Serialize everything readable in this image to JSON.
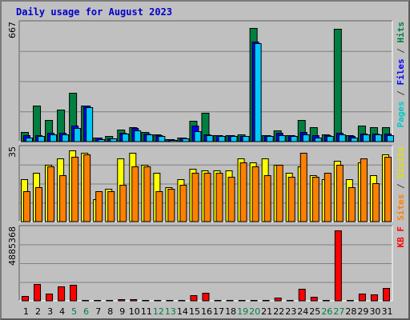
{
  "chart_data": {
    "type": "bar",
    "title": "Daily usage for August 2023",
    "categories": [
      "1",
      "2",
      "3",
      "4",
      "5",
      "6",
      "7",
      "8",
      "9",
      "10",
      "11",
      "12",
      "13",
      "14",
      "15",
      "16",
      "17",
      "18",
      "19",
      "20",
      "21",
      "22",
      "23",
      "24",
      "25",
      "26",
      "27",
      "28",
      "29",
      "30",
      "31"
    ],
    "weekend_categories": [
      "5",
      "6",
      "12",
      "13",
      "19",
      "20",
      "26",
      "27"
    ],
    "panels": [
      {
        "name": "hits-files-pages",
        "ymax": 667,
        "ymax_label": "667",
        "axis_legend": [
          {
            "text": "Pages",
            "color": "#00c8c8"
          },
          {
            "text": " / ",
            "color": "#404040"
          },
          {
            "text": "Files",
            "color": "#0000ff"
          },
          {
            "text": " / ",
            "color": "#404040"
          },
          {
            "text": "Hits",
            "color": "#008040"
          }
        ],
        "series": [
          {
            "name": "Hits",
            "color": "#008040",
            "values": [
              55,
              205,
              125,
              185,
              280,
              205,
              25,
              30,
              70,
              85,
              55,
              40,
              15,
              25,
              120,
              165,
              35,
              35,
              40,
              655,
              35,
              65,
              35,
              125,
              85,
              40,
              650,
              35,
              90,
              85,
              85
            ]
          },
          {
            "name": "Files",
            "color": "#0000ff",
            "values": [
              35,
              35,
              50,
              50,
              90,
              205,
              25,
              20,
              50,
              80,
              45,
              35,
              15,
              25,
              90,
              40,
              35,
              35,
              30,
              575,
              35,
              50,
              35,
              55,
              35,
              35,
              50,
              30,
              45,
              45,
              45
            ]
          },
          {
            "name": "Pages",
            "color": "#00c8ff",
            "values": [
              25,
              30,
              40,
              40,
              80,
              200,
              15,
              20,
              45,
              65,
              40,
              30,
              10,
              20,
              60,
              35,
              30,
              30,
              30,
              565,
              30,
              35,
              30,
              40,
              25,
              30,
              40,
              25,
              40,
              40,
              35
            ]
          }
        ]
      },
      {
        "name": "visits-sites",
        "ymax": 35,
        "ymax_label": "35",
        "axis_legend": [
          {
            "text": "Sites",
            "color": "#ff8000"
          },
          {
            "text": " / ",
            "color": "#404040"
          },
          {
            "text": "Visits",
            "color": "#e0e000"
          }
        ],
        "series": [
          {
            "name": "Visits",
            "color": "#ffff00",
            "values": [
              21,
              24,
              28,
              31,
              35,
              34,
              11,
              16,
              31,
              34,
              28,
              24,
              17,
              21,
              26,
              25,
              25,
              25,
              31,
              29,
              31,
              28,
              24,
              27,
              23,
              21,
              30,
              21,
              29,
              23,
              33
            ]
          },
          {
            "name": "Sites",
            "color": "#ff8000",
            "values": [
              15,
              17,
              27,
              23,
              32,
              33,
              15,
              15,
              18,
              27,
              27,
              15,
              16,
              18,
              24,
              24,
              24,
              22,
              29,
              27,
              23,
              28,
              22,
              34,
              22,
              24,
              28,
              17,
              31,
              19,
              32
            ]
          }
        ]
      },
      {
        "name": "kbytes",
        "ymax": 4885368,
        "ymax_label": "4885368",
        "axis_legend": [
          {
            "text": "KB F",
            "color": "#ff0000"
          }
        ],
        "series": [
          {
            "name": "KBytes",
            "color": "#ff0000",
            "values": [
              310000,
              1170000,
              510000,
              980000,
              1100000,
              75000,
              75000,
              75000,
              110000,
              130000,
              45000,
              45000,
              45000,
              45000,
              370000,
              550000,
              40000,
              75000,
              40000,
              40000,
              40000,
              220000,
              40000,
              860000,
              260000,
              40000,
              4885368,
              40000,
              510000,
              460000,
              890000
            ]
          }
        ]
      }
    ]
  }
}
